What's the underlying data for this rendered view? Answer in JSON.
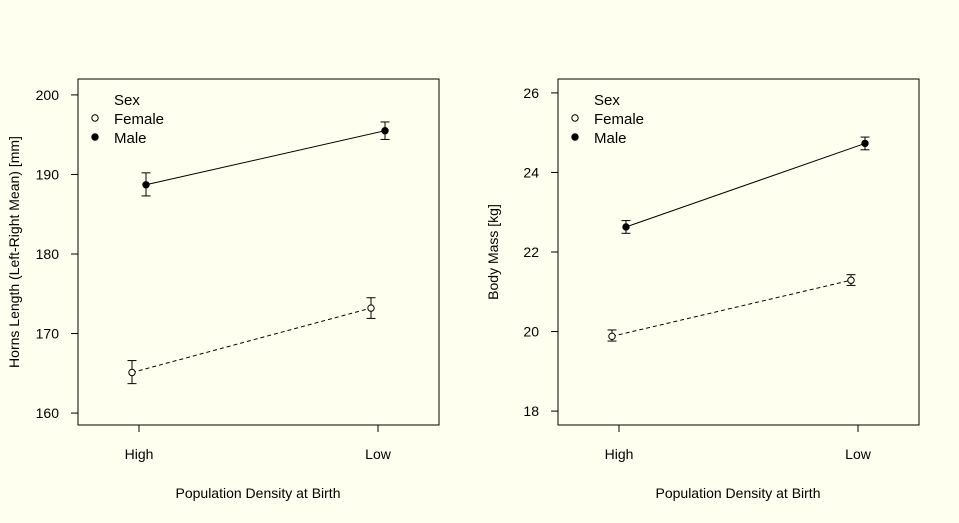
{
  "chart_data": [
    {
      "type": "line",
      "xlabel": "Population Density at Birth",
      "ylabel": "Horns Length (Left-Right Mean) [mm]",
      "categories": [
        "High",
        "Low"
      ],
      "ylim": [
        158.5,
        202
      ],
      "yticks": [
        160,
        170,
        180,
        190,
        200
      ],
      "grid": false,
      "legend": {
        "title": "Sex",
        "placement": "top-left",
        "entries": [
          "Female",
          "Male"
        ]
      },
      "series": [
        {
          "name": "Female",
          "marker": "open-circle",
          "line": "dashed",
          "values": [
            165.1,
            173.2
          ],
          "error_low": [
            163.7,
            171.9
          ],
          "error_high": [
            166.6,
            174.5
          ]
        },
        {
          "name": "Male",
          "marker": "filled-circle",
          "line": "solid",
          "values": [
            188.7,
            195.5
          ],
          "error_low": [
            187.3,
            194.4
          ],
          "error_high": [
            190.2,
            196.6
          ]
        }
      ]
    },
    {
      "type": "line",
      "xlabel": "Population Density at Birth",
      "ylabel": "Body Mass [kg]",
      "categories": [
        "High",
        "Low"
      ],
      "ylim": [
        17.65,
        26.35
      ],
      "yticks": [
        18,
        20,
        22,
        24,
        26
      ],
      "grid": false,
      "legend": {
        "title": "Sex",
        "placement": "top-left",
        "entries": [
          "Female",
          "Male"
        ]
      },
      "series": [
        {
          "name": "Female",
          "marker": "open-circle",
          "line": "dashed",
          "values": [
            19.88,
            21.29
          ],
          "error_low": [
            19.76,
            21.16
          ],
          "error_high": [
            20.04,
            21.43
          ]
        },
        {
          "name": "Male",
          "marker": "filled-circle",
          "line": "solid",
          "values": [
            22.63,
            24.73
          ],
          "error_low": [
            22.47,
            24.57
          ],
          "error_high": [
            22.79,
            24.89
          ]
        }
      ]
    }
  ]
}
